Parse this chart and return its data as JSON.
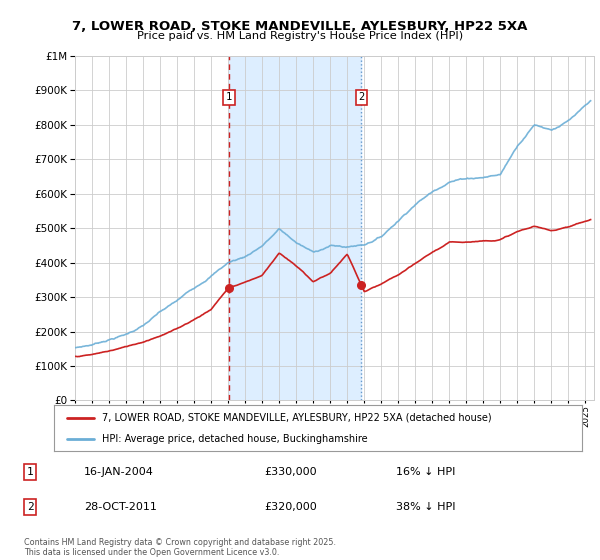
{
  "title1": "7, LOWER ROAD, STOKE MANDEVILLE, AYLESBURY, HP22 5XA",
  "title2": "Price paid vs. HM Land Registry's House Price Index (HPI)",
  "background_color": "#ffffff",
  "plot_bg_color": "#ffffff",
  "grid_color": "#cccccc",
  "hpi_color": "#6baed6",
  "price_color": "#cc2222",
  "sale1_label": "16-JAN-2004",
  "sale1_price": 330000,
  "sale1_pct": "16% ↓ HPI",
  "sale2_label": "28-OCT-2011",
  "sale2_price": 320000,
  "sale2_pct": "38% ↓ HPI",
  "legend_entry1": "7, LOWER ROAD, STOKE MANDEVILLE, AYLESBURY, HP22 5XA (detached house)",
  "legend_entry2": "HPI: Average price, detached house, Buckinghamshire",
  "footnote": "Contains HM Land Registry data © Crown copyright and database right 2025.\nThis data is licensed under the Open Government Licence v3.0.",
  "ylim": [
    0,
    1000000
  ],
  "yticks": [
    0,
    100000,
    200000,
    300000,
    400000,
    500000,
    600000,
    700000,
    800000,
    900000,
    1000000
  ],
  "shade_color": "#ddeeff",
  "sale1_x": 2004.04,
  "sale2_x": 2011.83,
  "sale1_dash_color": "#cc2222",
  "sale2_dash_color": "#6699cc"
}
